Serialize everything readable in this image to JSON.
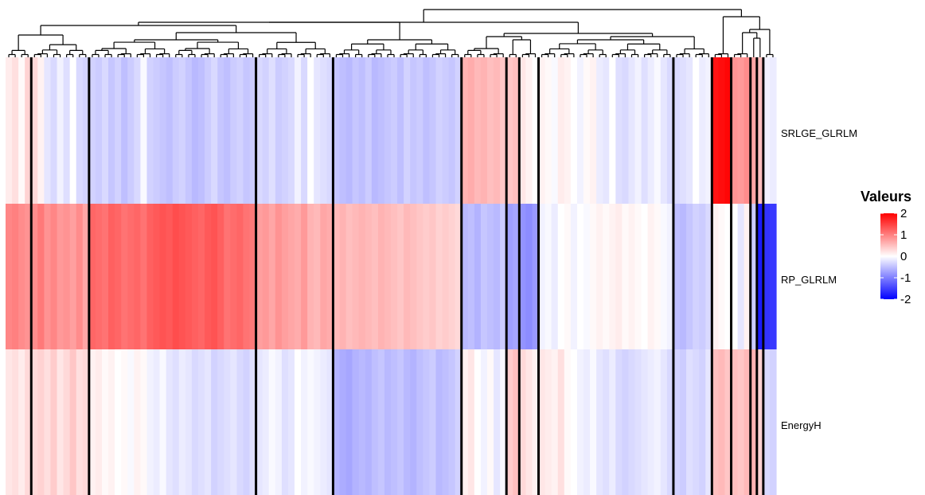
{
  "chart_data": {
    "type": "heatmap",
    "rows": [
      "SRLGE_GLRLM",
      "RP_GLRLM",
      "EnergyH"
    ],
    "n_columns": 120,
    "cluster_groups": [
      {
        "size": 4,
        "values": [
          [
            0.15,
            0.25,
            0.05,
            0.35
          ],
          [
            0.95,
            1.0,
            0.9,
            0.85
          ],
          [
            0.2,
            0.25,
            0.15,
            0.3
          ]
        ]
      },
      {
        "size": 9,
        "values": [
          [
            0.3,
            0.1,
            -0.2,
            -0.3,
            -0.1,
            -0.25,
            0.0,
            -0.3,
            -0.35
          ],
          [
            0.9,
            1.05,
            0.85,
            0.95,
            0.8,
            0.85,
            0.75,
            0.9,
            0.7
          ],
          [
            0.3,
            0.35,
            0.25,
            0.4,
            0.2,
            0.3,
            0.45,
            0.25,
            0.3
          ]
        ]
      },
      {
        "size": 26,
        "values": [
          [
            -0.35,
            -0.4,
            -0.3,
            -0.45,
            -0.35,
            -0.5,
            -0.4,
            -0.3,
            -0.05,
            -0.35,
            -0.4,
            -0.45,
            -0.5,
            -0.4,
            -0.35,
            -0.45,
            -0.55,
            -0.5,
            -0.4,
            -0.3,
            -0.45,
            -0.5,
            -0.4,
            -0.35,
            -0.45,
            -0.4
          ],
          [
            1.2,
            1.15,
            1.1,
            1.25,
            1.2,
            1.1,
            1.15,
            1.2,
            1.1,
            1.25,
            1.3,
            1.35,
            1.3,
            1.4,
            1.35,
            1.3,
            1.25,
            1.2,
            1.3,
            1.35,
            1.25,
            1.1,
            1.15,
            1.2,
            1.1,
            1.05
          ],
          [
            0.1,
            0.15,
            0.05,
            0.1,
            0.0,
            0.05,
            -0.05,
            0.1,
            0.05,
            -0.1,
            -0.15,
            -0.05,
            -0.2,
            -0.25,
            -0.15,
            -0.2,
            -0.3,
            -0.25,
            -0.2,
            -0.35,
            -0.3,
            -0.25,
            -0.2,
            -0.3,
            -0.35,
            -0.25
          ]
        ]
      },
      {
        "size": 12,
        "values": [
          [
            -0.3,
            -0.35,
            -0.25,
            -0.4,
            -0.35,
            -0.3,
            -0.1,
            -0.3,
            0.0,
            -0.2,
            -0.25,
            -0.3
          ],
          [
            0.75,
            0.8,
            0.7,
            0.85,
            0.75,
            0.7,
            0.65,
            0.8,
            0.6,
            0.55,
            0.7,
            0.65
          ],
          [
            -0.2,
            -0.15,
            -0.05,
            -0.1,
            -0.25,
            -0.2,
            0.0,
            -0.1,
            -0.05,
            -0.1,
            -0.15,
            -0.2
          ]
        ]
      },
      {
        "size": 20,
        "values": [
          [
            -0.45,
            -0.5,
            -0.55,
            -0.45,
            -0.5,
            -0.4,
            -0.55,
            -0.5,
            -0.45,
            -0.4,
            -0.5,
            -0.35,
            -0.45,
            -0.4,
            -0.5,
            -0.45,
            -0.35,
            -0.4,
            -0.45,
            -0.35
          ],
          [
            0.55,
            0.6,
            0.5,
            0.55,
            0.6,
            0.55,
            0.5,
            0.6,
            0.55,
            0.5,
            0.45,
            0.55,
            0.5,
            0.45,
            0.4,
            0.45,
            0.35,
            0.4,
            0.35,
            0.3
          ],
          [
            -0.6,
            -0.65,
            -0.7,
            -0.6,
            -0.55,
            -0.6,
            -0.5,
            -0.45,
            -0.55,
            -0.5,
            -0.45,
            -0.55,
            -0.6,
            -0.5,
            -0.45,
            -0.4,
            -0.55,
            -0.5,
            -0.45,
            -0.35
          ]
        ]
      },
      {
        "size": 7,
        "values": [
          [
            0.6,
            0.65,
            0.55,
            0.6,
            0.5,
            0.55,
            0.45
          ],
          [
            -0.55,
            -0.5,
            -0.6,
            -0.45,
            -0.5,
            -0.55,
            -0.4
          ],
          [
            0.1,
            0.2,
            0.0,
            -0.1,
            0.05,
            -0.2,
            -0.05
          ]
        ]
      },
      {
        "size": 2,
        "values": [
          [
            0.45,
            0.5
          ],
          [
            -0.75,
            -0.7
          ],
          [
            0.4,
            0.5
          ]
        ]
      },
      {
        "size": 3,
        "values": [
          [
            0.2,
            0.1,
            0.0
          ],
          [
            -0.85,
            -0.9,
            -0.8
          ],
          [
            0.3,
            0.2,
            0.1
          ]
        ]
      },
      {
        "size": 21,
        "values": [
          [
            0.1,
            0.05,
            -0.05,
            0.15,
            0.1,
            0.0,
            -0.1,
            0.05,
            0.1,
            -0.15,
            -0.2,
            0.0,
            -0.25,
            -0.3,
            -0.2,
            -0.1,
            -0.25,
            -0.15,
            -0.05,
            -0.2,
            -0.3
          ],
          [
            -0.1,
            -0.05,
            -0.15,
            0.0,
            0.05,
            -0.1,
            0.0,
            -0.05,
            0.05,
            0.1,
            0.05,
            0.1,
            0.15,
            0.05,
            0.1,
            0.05,
            0.0,
            0.1,
            0.05,
            -0.05,
            -0.1
          ],
          [
            0.2,
            0.15,
            0.1,
            0.25,
            0.05,
            0.0,
            -0.1,
            -0.15,
            -0.05,
            -0.2,
            -0.25,
            -0.15,
            -0.3,
            -0.35,
            -0.3,
            -0.25,
            -0.2,
            -0.15,
            -0.1,
            -0.2,
            -0.3
          ]
        ]
      },
      {
        "size": 6,
        "values": [
          [
            -0.3,
            -0.25,
            -0.2,
            0.0,
            -0.15,
            -0.1
          ],
          [
            -0.5,
            -0.55,
            -0.45,
            -0.35,
            -0.4,
            -0.3
          ],
          [
            -0.35,
            -0.4,
            -0.25,
            -0.3,
            -0.35,
            -0.2
          ]
        ]
      },
      {
        "size": 3,
        "values": [
          [
            1.85,
            1.9,
            1.95
          ],
          [
            0.1,
            0.05,
            0.0
          ],
          [
            0.5,
            0.55,
            0.45
          ]
        ]
      },
      {
        "size": 3,
        "values": [
          [
            0.85,
            0.8,
            0.9
          ],
          [
            0.0,
            -0.2,
            0.1
          ],
          [
            0.5,
            0.45,
            0.55
          ]
        ]
      },
      {
        "size": 1,
        "values": [
          [
            0.7
          ],
          [
            -0.4
          ],
          [
            0.6
          ]
        ]
      },
      {
        "size": 1,
        "values": [
          [
            0.5
          ],
          [
            -1.8
          ],
          [
            0.35
          ]
        ]
      },
      {
        "size": 2,
        "values": [
          [
            -0.1,
            -0.15
          ],
          [
            -1.6,
            -1.55
          ],
          [
            -0.3,
            -0.35
          ]
        ]
      }
    ],
    "colorbar": {
      "title": "Valeurs",
      "range": [
        -2,
        2
      ],
      "tick_labels": [
        "2",
        "1",
        "0",
        "-1",
        "-2"
      ],
      "tick_values": [
        2,
        1,
        0,
        -1,
        -2
      ],
      "colors": {
        "high": "#ff0000",
        "mid": "#ffffff",
        "low": "#0000ff"
      }
    },
    "dendrogram": "columns",
    "legend_position": "right"
  }
}
